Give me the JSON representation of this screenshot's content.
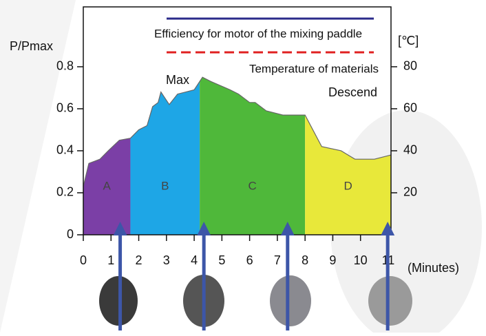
{
  "chart_data": {
    "type": "area",
    "x": [
      0,
      0.2,
      0.6,
      0.9,
      1.3,
      1.7,
      2.0,
      2.3,
      2.5,
      2.7,
      2.8,
      3.1,
      3.4,
      3.7,
      4.0,
      4.3,
      4.6,
      5.3,
      5.6,
      6.0,
      6.2,
      6.6,
      7.2,
      8.0,
      8.6,
      9.3,
      9.8,
      10.5,
      11.1
    ],
    "y": [
      0.23,
      0.34,
      0.36,
      0.4,
      0.45,
      0.46,
      0.5,
      0.52,
      0.61,
      0.63,
      0.68,
      0.62,
      0.67,
      0.68,
      0.69,
      0.75,
      0.73,
      0.69,
      0.67,
      0.63,
      0.63,
      0.59,
      0.57,
      0.57,
      0.42,
      0.4,
      0.36,
      0.36,
      0.38
    ],
    "regions": [
      {
        "label": "A",
        "start": 0,
        "end": 1.7,
        "color": "#7b3fa6"
      },
      {
        "label": "B",
        "start": 1.7,
        "end": 4.2,
        "color": "#1ea6e6"
      },
      {
        "label": "C",
        "start": 4.2,
        "end": 8.0,
        "color": "#4fb83a"
      },
      {
        "label": "D",
        "start": 8.0,
        "end": 11.1,
        "color": "#e8e83a"
      }
    ],
    "ylabel": "P/Pmax",
    "y2label": "[℃]",
    "xlabel": "(Minutes)",
    "xlim": [
      0,
      11.1
    ],
    "ylim": [
      0,
      1.085
    ],
    "y2lim": [
      0,
      108.5
    ],
    "xticks": [
      0,
      1,
      2,
      3,
      4,
      5,
      6,
      7,
      8,
      9,
      10,
      11
    ],
    "yticks": [
      0,
      0.2,
      0.4,
      0.6,
      0.8
    ],
    "y2ticks": [
      20,
      40,
      60,
      80
    ],
    "legend": [
      {
        "name": "Efficiency for motor of the mixing paddle",
        "color": "#2a2a8a",
        "dash": false
      },
      {
        "name": "Temperature of materials",
        "color": "#e02020",
        "dash": true
      }
    ],
    "annotations": [
      "Max",
      "Descend"
    ],
    "arrow_x": [
      1.33,
      4.35,
      7.37,
      10.98
    ],
    "arrow_color": "#3d56a8"
  }
}
